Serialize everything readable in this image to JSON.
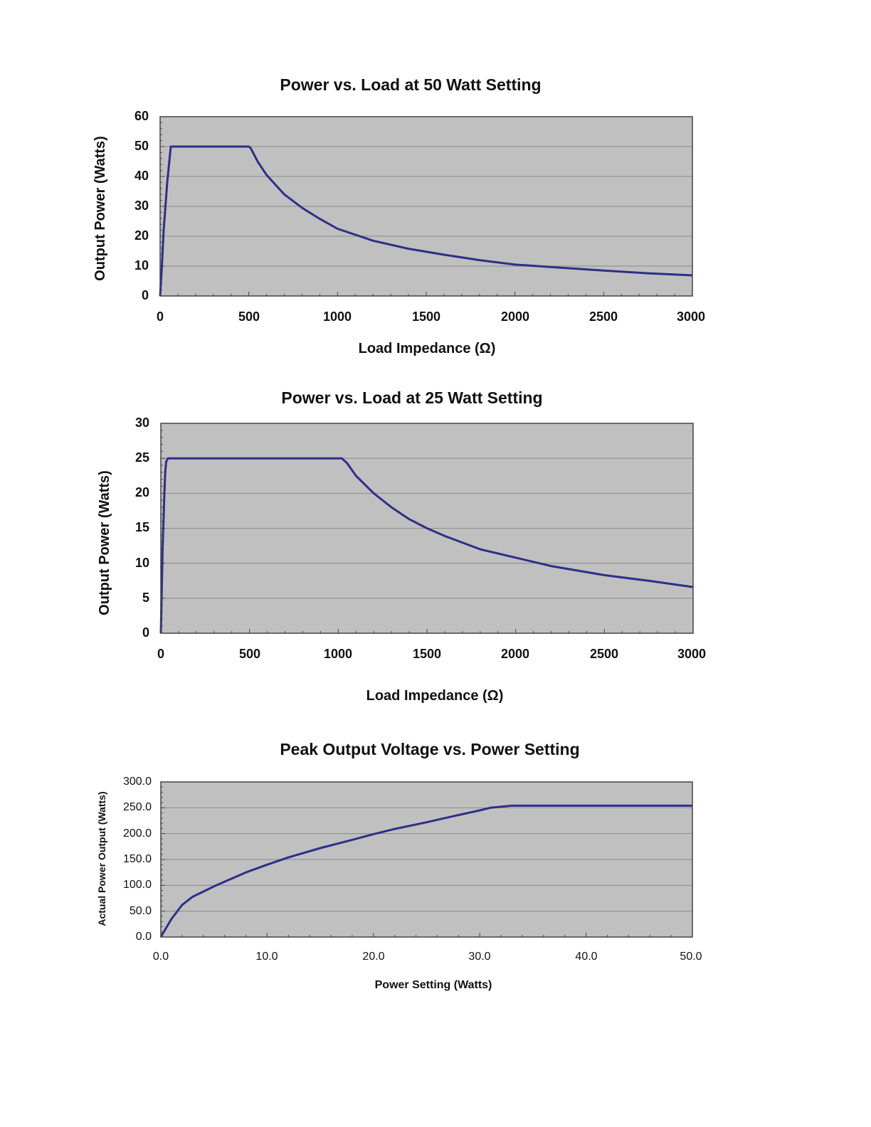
{
  "colors": {
    "plot_bg": "#c0c0c0",
    "grid": "#8a8a8a",
    "frame": "#444444",
    "line": "#2e2e8a"
  },
  "chart_data": [
    {
      "type": "line",
      "title": "Power vs. Load at 50 Watt Setting",
      "xlabel": "Load Impedance (Ω)",
      "ylabel": "Output  Power (Watts)",
      "xlim": [
        0,
        3000
      ],
      "ylim": [
        0,
        60
      ],
      "xticks": [
        "0",
        "500",
        "1000",
        "1500",
        "2000",
        "2500",
        "3000"
      ],
      "yticks": [
        "0",
        "10",
        "20",
        "30",
        "40",
        "50",
        "60"
      ],
      "series": [
        {
          "name": "Output Power",
          "x": [
            0,
            10,
            20,
            30,
            40,
            50,
            60,
            500,
            510,
            550,
            600,
            700,
            800,
            900,
            1000,
            1200,
            1400,
            1600,
            1800,
            2000,
            2250,
            2500,
            2750,
            3000
          ],
          "y": [
            0,
            10,
            22,
            30,
            38,
            44,
            50,
            50,
            49.5,
            45,
            40.5,
            34,
            29.5,
            25.8,
            22.5,
            18.5,
            15.8,
            13.8,
            12,
            10.5,
            9.5,
            8.5,
            7.6,
            6.9
          ]
        }
      ]
    },
    {
      "type": "line",
      "title": "Power vs. Load at 25 Watt Setting",
      "xlabel": "Load Impedance (Ω)",
      "ylabel": "Output  Power (Watts)",
      "xlim": [
        0,
        3000
      ],
      "ylim": [
        0,
        30
      ],
      "xticks": [
        "0",
        "500",
        "1000",
        "1500",
        "2000",
        "2500",
        "3000"
      ],
      "yticks": [
        "0",
        "5",
        "10",
        "15",
        "20",
        "25",
        "30"
      ],
      "series": [
        {
          "name": "Output Power",
          "x": [
            0,
            10,
            20,
            25,
            30,
            40,
            1020,
            1050,
            1100,
            1200,
            1300,
            1400,
            1500,
            1600,
            1800,
            2000,
            2200,
            2500,
            2750,
            3000
          ],
          "y": [
            0,
            12,
            20,
            23,
            24.5,
            25,
            25,
            24.3,
            22.5,
            20,
            18,
            16.3,
            15,
            13.9,
            12,
            10.8,
            9.6,
            8.3,
            7.5,
            6.6
          ]
        }
      ]
    },
    {
      "type": "line",
      "title": "Peak Output Voltage vs. Power Setting",
      "xlabel": "Power Setting (Watts)",
      "ylabel": "Actual Power Output (Watts)",
      "xlim": [
        0,
        50
      ],
      "ylim": [
        0,
        300
      ],
      "xticks": [
        "0.0",
        "10.0",
        "20.0",
        "30.0",
        "40.0",
        "50.0"
      ],
      "yticks": [
        "0.0",
        "50.0",
        "100.0",
        "150.0",
        "200.0",
        "250.0",
        "300.0"
      ],
      "series": [
        {
          "name": "Actual Power Output",
          "x": [
            0,
            1,
            2,
            3,
            4,
            5,
            6,
            8,
            10,
            12,
            15,
            18,
            20,
            22,
            25,
            28,
            30,
            31,
            32,
            33,
            35,
            40,
            45,
            50
          ],
          "y": [
            0,
            35,
            62,
            78,
            88,
            98,
            107,
            125,
            140,
            154,
            172,
            188,
            199,
            209,
            222,
            236,
            245,
            250,
            252,
            254,
            254,
            254,
            254,
            254
          ]
        }
      ]
    }
  ]
}
